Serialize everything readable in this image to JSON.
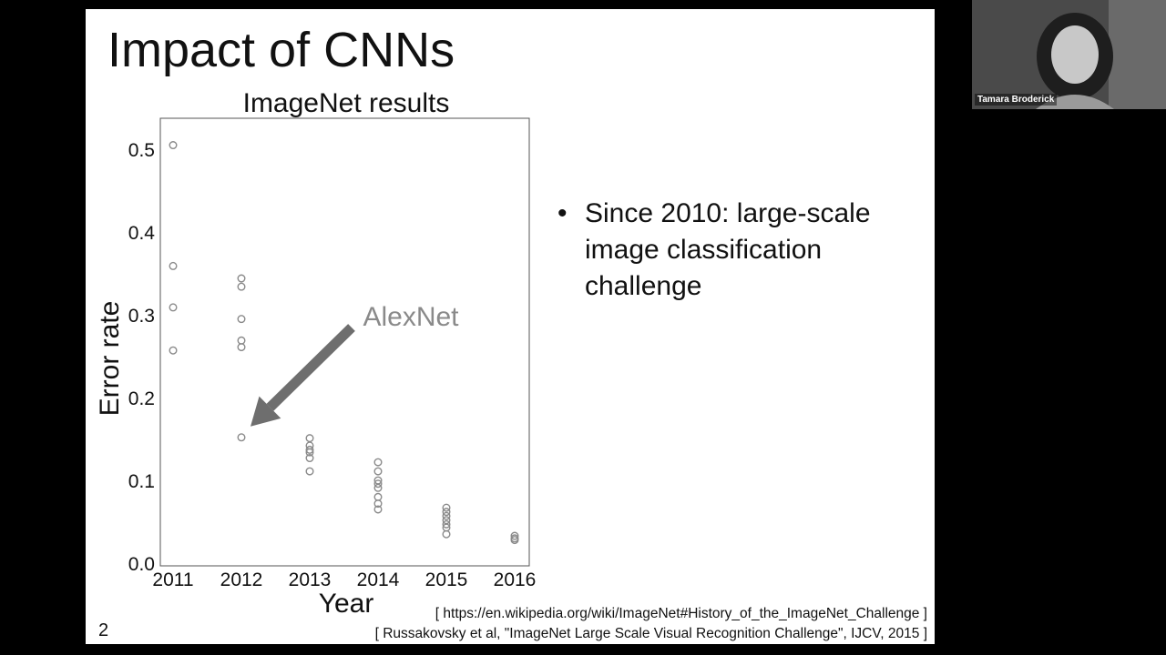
{
  "slide": {
    "title": "Impact of CNNs",
    "number": "2",
    "bullet_symbol": "•",
    "bullet": "Since 2010: large-scale image classification challenge",
    "references": [
      "[ https://en.wikipedia.org/wiki/ImageNet#History_of_the_ImageNet_Challenge ]",
      "[ Russakovsky et al, \"ImageNet Large Scale Visual Recognition Challenge\", IJCV, 2015 ]"
    ]
  },
  "chart_data": {
    "type": "scatter",
    "title": "ImageNet results",
    "xlabel": "Year",
    "ylabel": "Error rate",
    "xlim": [
      2011,
      2016
    ],
    "ylim": [
      0.0,
      0.5
    ],
    "x_ticks": [
      "2011",
      "2012",
      "2013",
      "2014",
      "2015",
      "2016"
    ],
    "y_ticks": [
      "0.0",
      "0.1",
      "0.2",
      "0.3",
      "0.4",
      "0.5"
    ],
    "grid": false,
    "marker_color": "#8a8a8a",
    "points": [
      {
        "x": 2011,
        "y": 0.506
      },
      {
        "x": 2011,
        "y": 0.36
      },
      {
        "x": 2011,
        "y": 0.31
      },
      {
        "x": 2011,
        "y": 0.258
      },
      {
        "x": 2012,
        "y": 0.345
      },
      {
        "x": 2012,
        "y": 0.335
      },
      {
        "x": 2012,
        "y": 0.296
      },
      {
        "x": 2012,
        "y": 0.27
      },
      {
        "x": 2012,
        "y": 0.262
      },
      {
        "x": 2012,
        "y": 0.153
      },
      {
        "x": 2013,
        "y": 0.152
      },
      {
        "x": 2013,
        "y": 0.143
      },
      {
        "x": 2013,
        "y": 0.138
      },
      {
        "x": 2013,
        "y": 0.135
      },
      {
        "x": 2013,
        "y": 0.128
      },
      {
        "x": 2013,
        "y": 0.112
      },
      {
        "x": 2014,
        "y": 0.123
      },
      {
        "x": 2014,
        "y": 0.112
      },
      {
        "x": 2014,
        "y": 0.101
      },
      {
        "x": 2014,
        "y": 0.097
      },
      {
        "x": 2014,
        "y": 0.092
      },
      {
        "x": 2014,
        "y": 0.081
      },
      {
        "x": 2014,
        "y": 0.073
      },
      {
        "x": 2014,
        "y": 0.066
      },
      {
        "x": 2015,
        "y": 0.068
      },
      {
        "x": 2015,
        "y": 0.063
      },
      {
        "x": 2015,
        "y": 0.058
      },
      {
        "x": 2015,
        "y": 0.053
      },
      {
        "x": 2015,
        "y": 0.048
      },
      {
        "x": 2015,
        "y": 0.044
      },
      {
        "x": 2015,
        "y": 0.036
      },
      {
        "x": 2016,
        "y": 0.034
      },
      {
        "x": 2016,
        "y": 0.031
      },
      {
        "x": 2016,
        "y": 0.029
      }
    ],
    "annotation": {
      "text": "AlexNet",
      "points_to": {
        "x": 2012,
        "y": 0.153
      },
      "color": "#8a8a8a",
      "arrow_color": "#6e6e6e"
    }
  },
  "video": {
    "participant_name": "Tamara Broderick"
  }
}
